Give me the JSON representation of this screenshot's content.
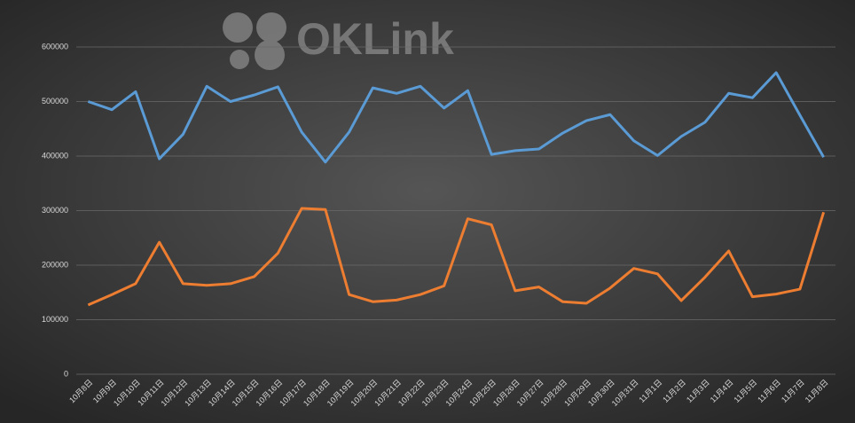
{
  "chart_data": {
    "type": "line",
    "watermark": "OKLink",
    "categories": [
      "10月8日",
      "10月9日",
      "10月10日",
      "10月11日",
      "10月12日",
      "10月13日",
      "10月14日",
      "10月15日",
      "10月16日",
      "10月17日",
      "10月18日",
      "10月19日",
      "10月20日",
      "10月21日",
      "10月22日",
      "10月23日",
      "10月24日",
      "10月25日",
      "10月26日",
      "10月27日",
      "10月28日",
      "10月29日",
      "10月30日",
      "10月31日",
      "11月1日",
      "11月2日",
      "11月3日",
      "11月4日",
      "11月5日",
      "11月6日",
      "11月7日",
      "11月8日"
    ],
    "series": [
      {
        "color": "#5b9bd5",
        "values": [
          500000,
          485000,
          518000,
          395000,
          440000,
          528000,
          500000,
          512000,
          527000,
          444000,
          389000,
          444000,
          525000,
          515000,
          528000,
          488000,
          520000,
          403000,
          410000,
          413000,
          442000,
          465000,
          476000,
          428000,
          401000,
          436000,
          462000,
          515000,
          507000,
          553000,
          475000,
          398000
        ]
      },
      {
        "color": "#ed7d31",
        "values": [
          127000,
          146000,
          166000,
          242000,
          166000,
          163000,
          166000,
          179000,
          222000,
          304000,
          302000,
          146000,
          133000,
          136000,
          146000,
          162000,
          285000,
          274000,
          153000,
          160000,
          133000,
          130000,
          158000,
          194000,
          184000,
          135000,
          178000,
          226000,
          142000,
          147000,
          156000,
          297000
        ]
      }
    ],
    "ylim": [
      0,
      600000
    ],
    "yticks": [
      0,
      100000,
      200000,
      300000,
      400000,
      500000,
      600000
    ],
    "grid": true
  }
}
